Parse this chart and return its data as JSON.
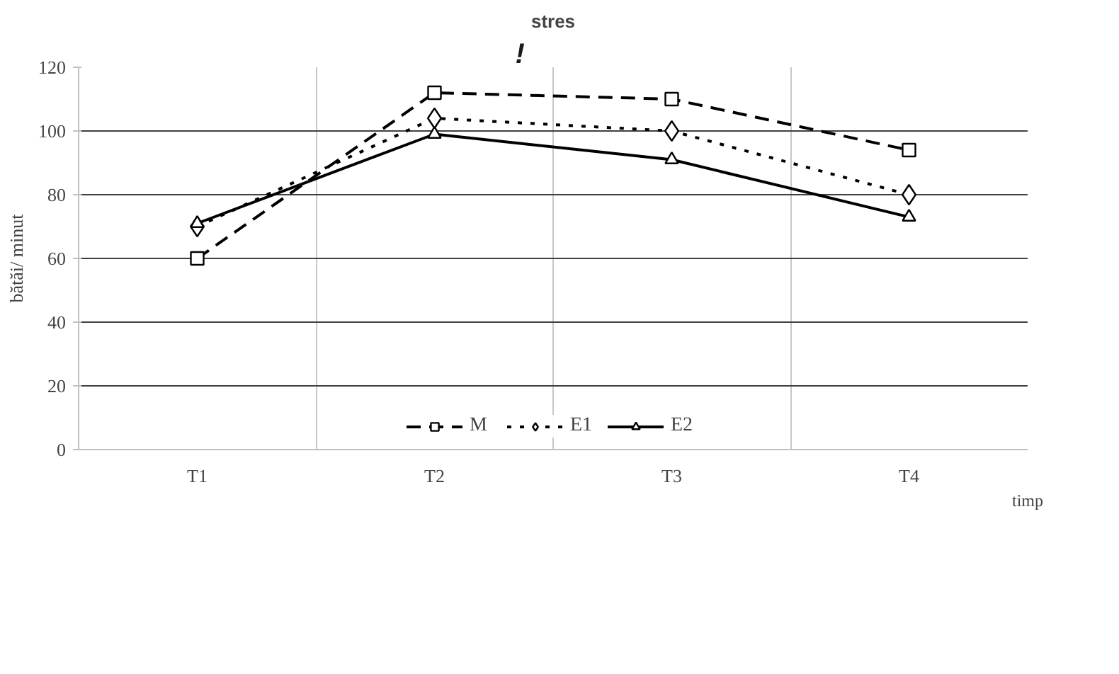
{
  "chart_data": {
    "type": "line",
    "title": "stres",
    "xlabel": "timp",
    "ylabel": "bătăi/ minut",
    "categories": [
      "T1",
      "T2",
      "T3",
      "T4"
    ],
    "series": [
      {
        "name": "M",
        "color": "#000000",
        "values": [
          60,
          112,
          110,
          94
        ],
        "marker": "square",
        "line_style": "dashed"
      },
      {
        "name": "E1",
        "color": "#000000",
        "values": [
          70,
          104,
          100,
          80
        ],
        "marker": "diamond",
        "line_style": "dotted"
      },
      {
        "name": "E2",
        "color": "#000000",
        "values": [
          71,
          99,
          91,
          73
        ],
        "marker": "triangle",
        "line_style": "solid"
      }
    ],
    "ylim": [
      0,
      120
    ],
    "yticks": [
      0,
      20,
      40,
      60,
      80,
      100,
      120
    ],
    "grid": true,
    "legend": "bottom",
    "annotations": [
      "!"
    ]
  }
}
